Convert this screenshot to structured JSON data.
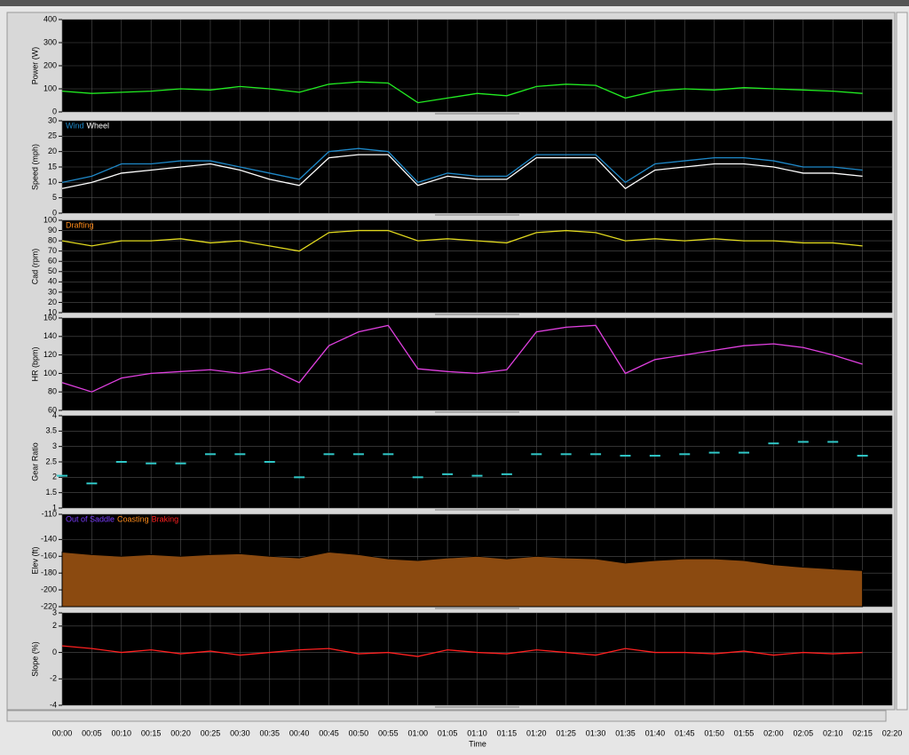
{
  "time_axis": {
    "label": "Time",
    "xlim": [
      0,
      140
    ],
    "x": [
      0,
      5,
      10,
      15,
      20,
      25,
      30,
      35,
      40,
      45,
      50,
      55,
      60,
      65,
      70,
      75,
      80,
      85,
      90,
      95,
      100,
      105,
      110,
      115,
      120,
      125,
      130,
      135
    ],
    "xticks": [
      {
        "value": 0,
        "label": "00:00"
      },
      {
        "value": 5,
        "label": "00:05"
      },
      {
        "value": 10,
        "label": "00:10"
      },
      {
        "value": 15,
        "label": "00:15"
      },
      {
        "value": 20,
        "label": "00:20"
      },
      {
        "value": 25,
        "label": "00:25"
      },
      {
        "value": 30,
        "label": "00:30"
      },
      {
        "value": 35,
        "label": "00:35"
      },
      {
        "value": 40,
        "label": "00:40"
      },
      {
        "value": 45,
        "label": "00:45"
      },
      {
        "value": 50,
        "label": "00:50"
      },
      {
        "value": 55,
        "label": "00:55"
      },
      {
        "value": 60,
        "label": "01:00"
      },
      {
        "value": 65,
        "label": "01:05"
      },
      {
        "value": 70,
        "label": "01:10"
      },
      {
        "value": 75,
        "label": "01:15"
      },
      {
        "value": 80,
        "label": "01:20"
      },
      {
        "value": 85,
        "label": "01:25"
      },
      {
        "value": 90,
        "label": "01:30"
      },
      {
        "value": 95,
        "label": "01:35"
      },
      {
        "value": 100,
        "label": "01:40"
      },
      {
        "value": 105,
        "label": "01:45"
      },
      {
        "value": 110,
        "label": "01:50"
      },
      {
        "value": 115,
        "label": "01:55"
      },
      {
        "value": 120,
        "label": "02:00"
      },
      {
        "value": 125,
        "label": "02:05"
      },
      {
        "value": 130,
        "label": "02:10"
      },
      {
        "value": 135,
        "label": "02:15"
      },
      {
        "value": 140,
        "label": "02:20"
      }
    ]
  },
  "chart_data": [
    {
      "type": "line",
      "ylabel": "Power (W)",
      "ylim": [
        0,
        400
      ],
      "yticks": [
        0,
        100,
        200,
        300,
        400
      ],
      "series": [
        {
          "color": "#22ee22",
          "values": [
            90,
            80,
            85,
            90,
            100,
            95,
            110,
            100,
            85,
            120,
            130,
            125,
            40,
            60,
            80,
            70,
            110,
            120,
            115,
            60,
            90,
            100,
            95,
            105,
            100,
            95,
            90,
            80
          ]
        }
      ]
    },
    {
      "type": "line",
      "ylabel": "Speed (mph)",
      "ylim": [
        0,
        30
      ],
      "yticks": [
        0,
        5,
        10,
        15,
        20,
        25,
        30
      ],
      "series": [
        {
          "name": "Wind",
          "color": "#1e88c8",
          "values": [
            10,
            12,
            16,
            16,
            17,
            17,
            15,
            13,
            11,
            20,
            21,
            20,
            10,
            13,
            12,
            12,
            19,
            19,
            19,
            10,
            16,
            17,
            18,
            18,
            17,
            15,
            15,
            14
          ]
        },
        {
          "name": "Wheel",
          "color": "#ffffff",
          "values": [
            8,
            10,
            13,
            14,
            15,
            16,
            14,
            11,
            9,
            18,
            19,
            19,
            9,
            12,
            11,
            11,
            18,
            18,
            18,
            8,
            14,
            15,
            16,
            16,
            15,
            13,
            13,
            12
          ]
        }
      ]
    },
    {
      "type": "line",
      "ylabel": "Cad (rpm)",
      "ylim": [
        10,
        100
      ],
      "yticks": [
        10,
        20,
        30,
        40,
        50,
        60,
        70,
        80,
        90,
        100
      ],
      "legend": [
        {
          "name": "Drafting",
          "color": "#ff8c1a"
        }
      ],
      "series": [
        {
          "color": "#e0d81e",
          "values": [
            80,
            75,
            80,
            80,
            82,
            78,
            80,
            75,
            70,
            88,
            90,
            90,
            80,
            82,
            80,
            78,
            88,
            90,
            88,
            80,
            82,
            80,
            82,
            80,
            80,
            78,
            78,
            75
          ]
        }
      ]
    },
    {
      "type": "line",
      "ylabel": "HR (bpm)",
      "ylim": [
        60,
        160
      ],
      "yticks": [
        60,
        80,
        100,
        120,
        140,
        160
      ],
      "series": [
        {
          "color": "#e040e0",
          "values": [
            90,
            80,
            95,
            100,
            102,
            104,
            100,
            105,
            90,
            130,
            145,
            152,
            105,
            102,
            100,
            104,
            145,
            150,
            152,
            100,
            115,
            120,
            125,
            130,
            132,
            128,
            120,
            110
          ]
        }
      ]
    },
    {
      "type": "dot",
      "ylabel": "Gear Ratio",
      "ylim": [
        1,
        4
      ],
      "yticks": [
        1,
        1.5,
        2,
        2.5,
        3,
        3.5,
        4
      ],
      "series": [
        {
          "color": "#30c8c8",
          "values": [
            2.05,
            1.8,
            2.5,
            2.45,
            2.45,
            2.75,
            2.75,
            2.5,
            2.0,
            2.75,
            2.75,
            2.75,
            2.0,
            2.1,
            2.05,
            2.1,
            2.75,
            2.75,
            2.75,
            2.7,
            2.7,
            2.75,
            2.8,
            2.8,
            3.1,
            3.15,
            3.15,
            2.7
          ]
        }
      ]
    },
    {
      "type": "area",
      "ylabel": "Elev (ft)",
      "ylim": [
        -220,
        -110
      ],
      "yticks": [
        -220,
        -200,
        -180,
        -160,
        -140,
        -110
      ],
      "legend": [
        {
          "name": "Out of Saddle",
          "color": "#7a3cff"
        },
        {
          "name": "Coasting",
          "color": "#ff8c1a"
        },
        {
          "name": "Braking",
          "color": "#ff2020"
        }
      ],
      "series": [
        {
          "color": "#8b4a10",
          "values": [
            -155,
            -158,
            -160,
            -158,
            -160,
            -158,
            -157,
            -160,
            -162,
            -155,
            -158,
            -163,
            -165,
            -162,
            -160,
            -163,
            -160,
            -162,
            -163,
            -168,
            -165,
            -163,
            -163,
            -165,
            -170,
            -173,
            -175,
            -177
          ]
        }
      ]
    },
    {
      "type": "line",
      "ylabel": "Slope (%)",
      "ylim": [
        -4,
        3
      ],
      "yticks": [
        -4,
        -2,
        0,
        2,
        3
      ],
      "series": [
        {
          "color": "#ff2020",
          "values": [
            0.5,
            0.3,
            0,
            0.2,
            -0.1,
            0.1,
            -0.2,
            0,
            0.2,
            0.3,
            -0.1,
            0,
            -0.3,
            0.2,
            0,
            -0.1,
            0.2,
            0,
            -0.2,
            0.3,
            0,
            0,
            -0.1,
            0.1,
            -0.2,
            0,
            -0.1,
            0
          ]
        }
      ]
    }
  ]
}
